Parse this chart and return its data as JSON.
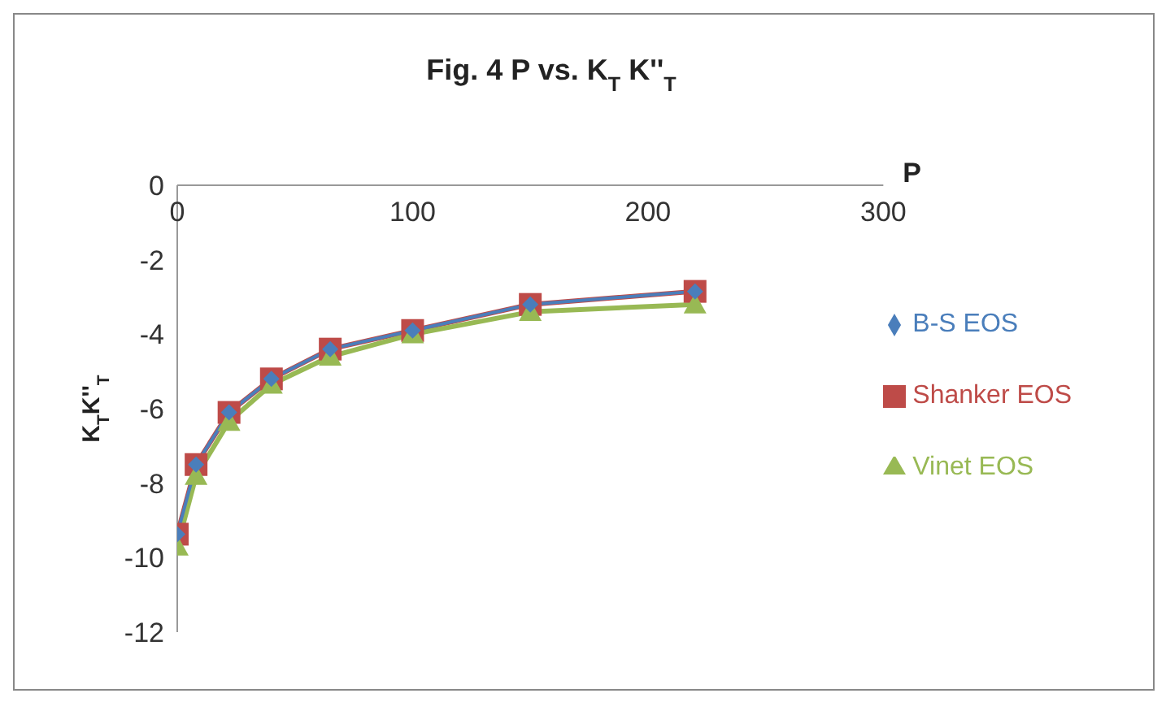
{
  "chart_data": {
    "type": "line",
    "title": "Fig. 4 P vs. K$_{T}$ K''$_{T}$",
    "xlabel": "P",
    "ylabel": "K$_{T}$K''$_{T}$",
    "x": [
      0,
      8,
      22,
      40,
      65,
      100,
      150,
      220
    ],
    "series": [
      {
        "name": "B-S EOS",
        "color": "#4a7ebb",
        "marker": "diamond",
        "values": [
          -9.37,
          -7.5,
          -6.1,
          -5.2,
          -4.4,
          -3.9,
          -3.2,
          -2.85
        ]
      },
      {
        "name": "Shanker EOS",
        "color": "#be4b48",
        "marker": "square",
        "values": [
          -9.37,
          -7.5,
          -6.1,
          -5.2,
          -4.4,
          -3.9,
          -3.2,
          -2.85
        ]
      },
      {
        "name": "Vinet EOS",
        "color": "#98b954",
        "marker": "triangle",
        "values": [
          -9.7,
          -7.8,
          -6.35,
          -5.35,
          -4.6,
          -4.0,
          -3.4,
          -3.2
        ]
      }
    ],
    "xlim": [
      0,
      300
    ],
    "xticks": [
      0,
      100,
      200,
      300
    ],
    "ylim": [
      -12,
      0
    ],
    "yticks": [
      0,
      -2,
      -4,
      -6,
      -8,
      -10,
      -12
    ],
    "grid": false,
    "legend": "right",
    "line_style": "solid"
  }
}
